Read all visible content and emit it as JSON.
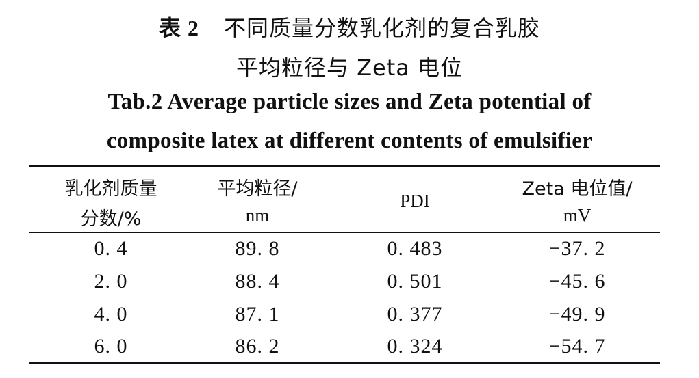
{
  "caption": {
    "cn_label": "表 2",
    "cn_line1": "不同质量分数乳化剂的复合乳胶",
    "cn_line2": "平均粒径与 Zeta 电位",
    "en_line1": "Tab.2   Average particle sizes and Zeta potential of",
    "en_line2": "composite latex at different contents of emulsifier"
  },
  "table": {
    "headers": [
      {
        "line1": "乳化剂质量",
        "line2": "分数/%"
      },
      {
        "line1": "平均粒径/",
        "line2": "nm"
      },
      {
        "line1": "PDI",
        "line2": ""
      },
      {
        "line1": "Zeta 电位值/",
        "line2": "mV"
      }
    ],
    "rows": [
      [
        "0. 4",
        "89. 8",
        "0. 483",
        "−37. 2"
      ],
      [
        "2. 0",
        "88. 4",
        "0. 501",
        "−45. 6"
      ],
      [
        "4. 0",
        "87. 1",
        "0. 377",
        "−49. 9"
      ],
      [
        "6. 0",
        "86. 2",
        "0. 324",
        "−54. 7"
      ]
    ]
  }
}
